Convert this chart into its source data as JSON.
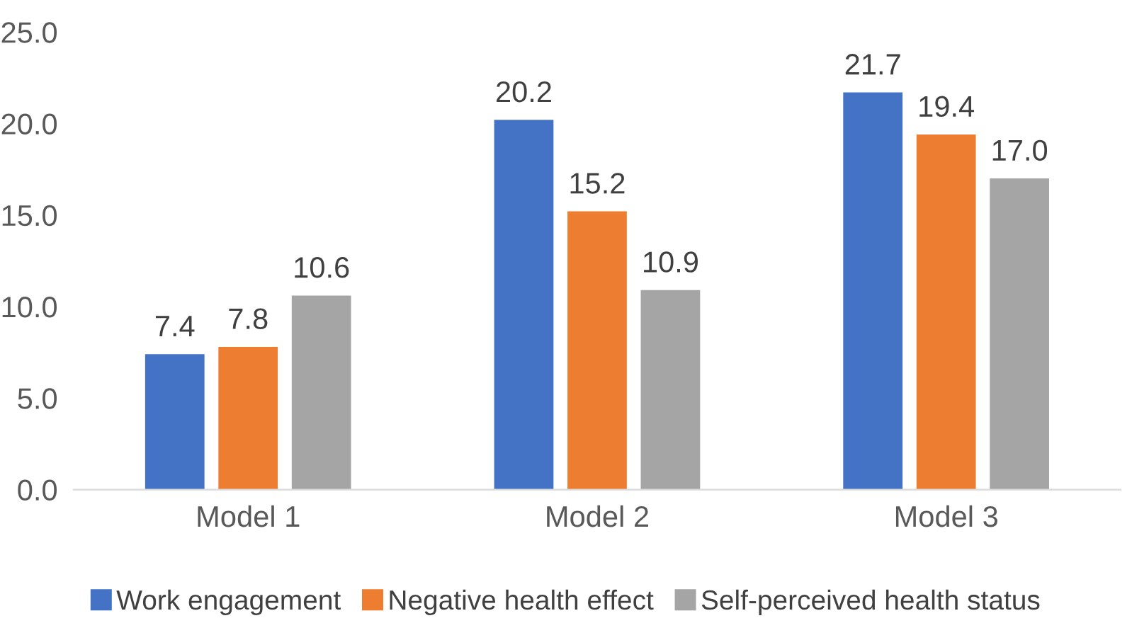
{
  "chart_data": {
    "type": "bar",
    "categories": [
      "Model 1",
      "Model 2",
      "Model 3"
    ],
    "series": [
      {
        "name": "Work engagement",
        "color": "#4472c4",
        "values": [
          7.4,
          20.2,
          21.7
        ],
        "value_labels": [
          "7.4",
          "20.2",
          "21.7"
        ]
      },
      {
        "name": "Negative health effect",
        "color": "#ed7d31",
        "values": [
          7.8,
          15.2,
          19.4
        ],
        "value_labels": [
          "7.8",
          "15.2",
          "19.4"
        ]
      },
      {
        "name": "Self-perceived health status",
        "color": "#a5a5a5",
        "values": [
          10.6,
          10.9,
          17.0
        ],
        "value_labels": [
          "10.6",
          "10.9",
          "17.0"
        ]
      }
    ],
    "ylim": [
      0,
      25
    ],
    "yticks": [
      {
        "value": 0,
        "label": "0.0"
      },
      {
        "value": 5,
        "label": "5.0"
      },
      {
        "value": 10,
        "label": "10.0"
      },
      {
        "value": 15,
        "label": "15.0"
      },
      {
        "value": 20,
        "label": "20.0"
      },
      {
        "value": 25,
        "label": "25.0"
      }
    ],
    "grid": false,
    "legend": "bottom"
  }
}
